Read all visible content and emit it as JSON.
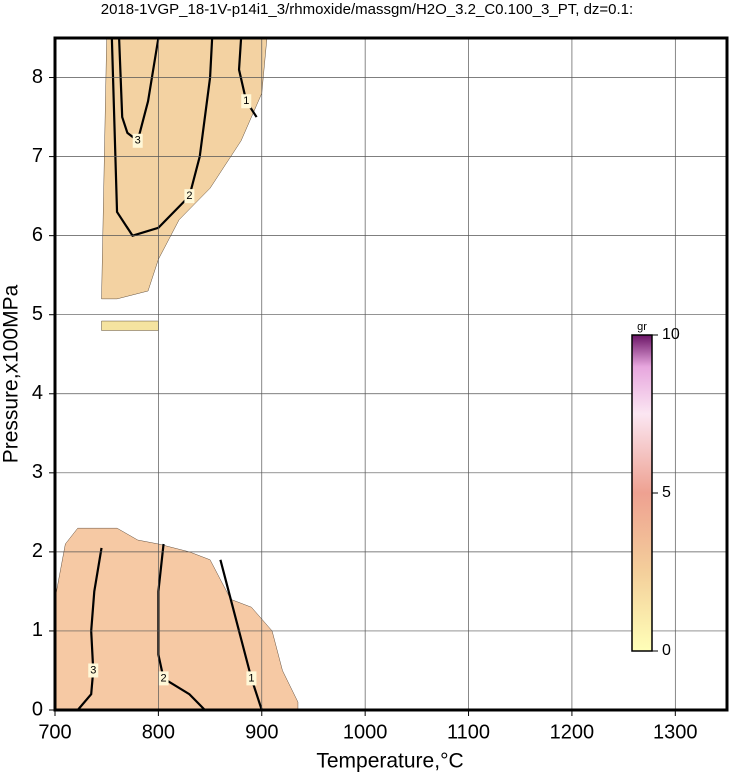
{
  "chart_data": {
    "type": "contour",
    "title": "2018-1VGP_18-1V-p14i1_3/rhmoxide/massgm/H2O_3.2_C0.100_3_PT, dz=0.1:",
    "x_label": "Temperature,°C",
    "y_label": "Pressure,x100MPa",
    "xlim": [
      700,
      1350
    ],
    "ylim": [
      0,
      8.5
    ],
    "xticks": [
      700,
      800,
      900,
      1000,
      1100,
      1200,
      1300
    ],
    "yticks": [
      0,
      1,
      2,
      3,
      4,
      5,
      6,
      7,
      8
    ],
    "grid": true,
    "regions": [
      {
        "color": "#f6c9a4",
        "x": [
          700,
          710,
          722,
          760,
          780,
          800,
          830,
          850,
          870,
          890,
          910,
          920,
          935,
          935,
          700
        ],
        "y": [
          1.4,
          2.1,
          2.3,
          2.3,
          2.15,
          2.1,
          2.0,
          1.9,
          1.4,
          1.3,
          1.0,
          0.5,
          0.1,
          0,
          0
        ]
      },
      {
        "color": "#f3d2a2",
        "x": [
          745,
          750,
          905,
          900,
          880,
          850,
          820,
          800,
          790,
          760
        ],
        "y": [
          5.2,
          8.5,
          8.5,
          7.8,
          7.2,
          6.6,
          6.2,
          5.7,
          5.3,
          5.2
        ]
      },
      {
        "color": "#f5e3a0",
        "x": [
          745,
          800,
          800,
          745
        ],
        "y": [
          4.8,
          4.8,
          4.92,
          4.92
        ]
      }
    ],
    "contours": [
      {
        "level": 3,
        "x": [
          745,
          738,
          735,
          737,
          735,
          722
        ],
        "y": [
          2.05,
          1.5,
          1.0,
          0.5,
          0.2,
          0
        ]
      },
      {
        "level": 2,
        "x": [
          805,
          800,
          800,
          805,
          830,
          845
        ],
        "y": [
          2.1,
          1.5,
          0.7,
          0.4,
          0.2,
          0
        ]
      },
      {
        "level": 1,
        "x": [
          860,
          870,
          880,
          890,
          895,
          900
        ],
        "y": [
          1.9,
          1.4,
          0.9,
          0.4,
          0.2,
          0
        ]
      },
      {
        "level": 3,
        "x": [
          762,
          765,
          770,
          780,
          790,
          800
        ],
        "y": [
          8.5,
          7.5,
          7.3,
          7.2,
          7.7,
          8.5
        ]
      },
      {
        "level": 2,
        "x": [
          755,
          760,
          775,
          800,
          830,
          840,
          850,
          852
        ],
        "y": [
          8.5,
          6.3,
          6.0,
          6.1,
          6.5,
          7.0,
          8.0,
          8.5
        ]
      },
      {
        "level": 1,
        "x": [
          880,
          878,
          885,
          895
        ],
        "y": [
          8.5,
          8.1,
          7.7,
          7.5
        ]
      }
    ],
    "colorbar": {
      "label": "gr",
      "lim": [
        0,
        10
      ],
      "ticks": [
        0,
        5,
        10
      ]
    }
  }
}
